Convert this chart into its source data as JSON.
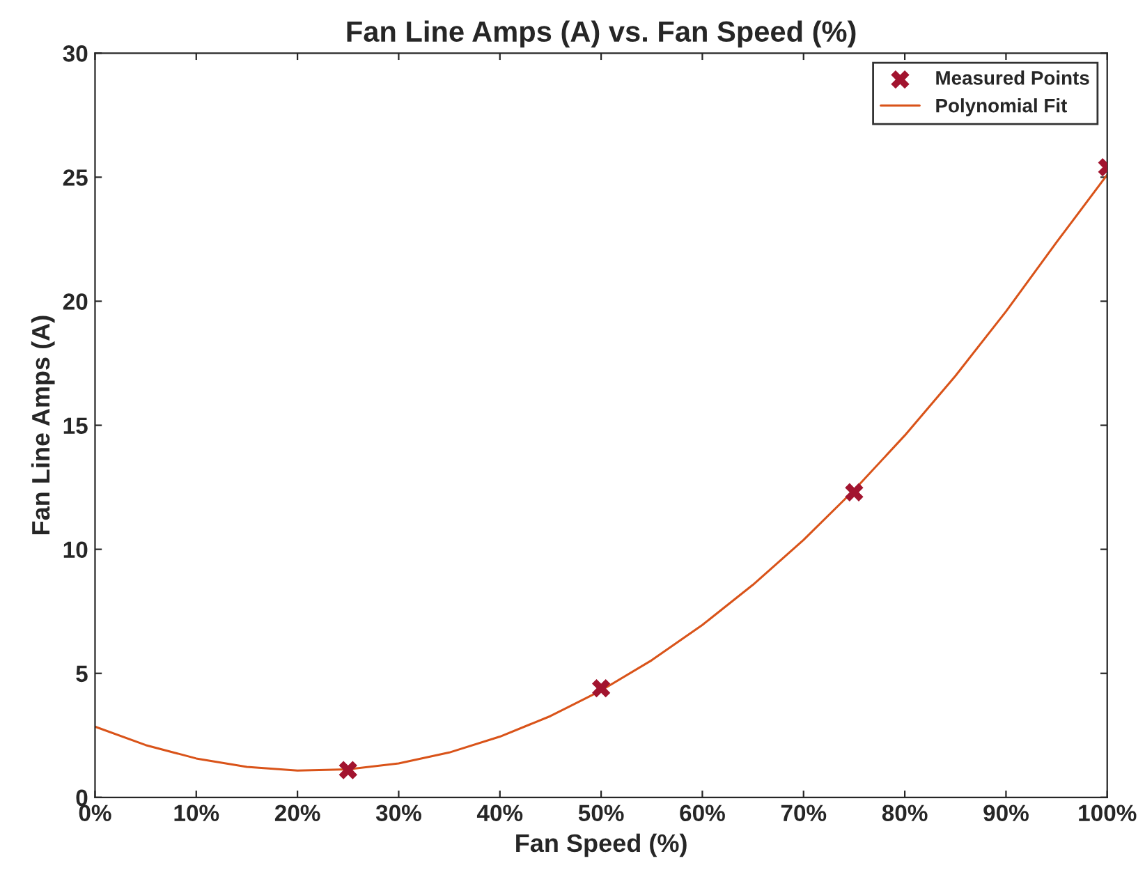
{
  "chart_data": {
    "type": "line",
    "title": "Fan Line Amps (A) vs. Fan Speed (%)",
    "xlabel": "Fan Speed (%)",
    "ylabel": "Fan Line Amps (A)",
    "xlim": [
      0,
      100
    ],
    "xticks": [
      {
        "value": 0,
        "label": "0%"
      },
      {
        "value": 10,
        "label": "10%"
      },
      {
        "value": 20,
        "label": "20%"
      },
      {
        "value": 30,
        "label": "30%"
      },
      {
        "value": 40,
        "label": "40%"
      },
      {
        "value": 50,
        "label": "50%"
      },
      {
        "value": 60,
        "label": "60%"
      },
      {
        "value": 70,
        "label": "70%"
      },
      {
        "value": 80,
        "label": "80%"
      },
      {
        "value": 90,
        "label": "90%"
      },
      {
        "value": 100,
        "label": "100%"
      }
    ],
    "ylim": [
      0,
      30
    ],
    "yticks": [
      0,
      5,
      10,
      15,
      20,
      25,
      30
    ],
    "grid": false,
    "legend": "top right",
    "series": [
      {
        "name": "Measured Points",
        "type": "scatter",
        "marker": "cross",
        "color": "#a2142f",
        "x": [
          25,
          50,
          75,
          100
        ],
        "values": [
          1.1,
          4.4,
          12.3,
          25.4
        ]
      },
      {
        "name": "Polynomial Fit",
        "marker": "none",
        "line_style": "solid",
        "color": "#d95319",
        "x": [
          0,
          5,
          10,
          15,
          20,
          25,
          30,
          35,
          40,
          45,
          50,
          55,
          60,
          65,
          70,
          75,
          80,
          85,
          90,
          95,
          100
        ],
        "values": [
          2.85,
          2.11,
          1.57,
          1.23,
          1.08,
          1.13,
          1.37,
          1.81,
          2.45,
          3.28,
          4.31,
          5.53,
          6.95,
          8.57,
          10.38,
          12.39,
          14.59,
          16.99,
          19.59,
          22.38,
          25.1
        ]
      }
    ]
  }
}
